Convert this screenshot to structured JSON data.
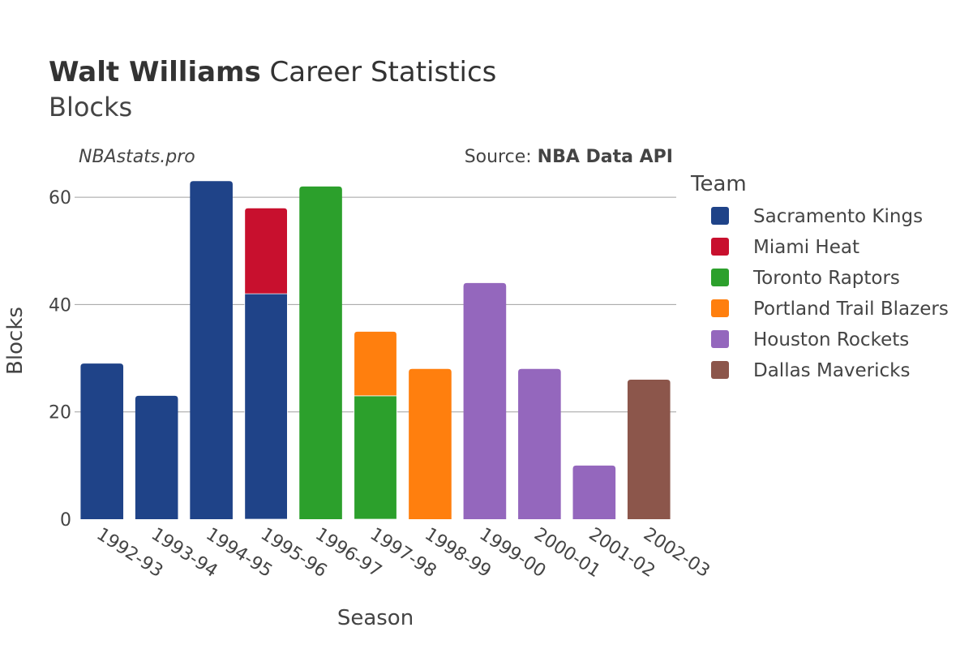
{
  "header": {
    "title_bold": "Walt Williams",
    "title_rest": " Career Statistics",
    "subtitle": "Blocks"
  },
  "credits": {
    "site": "NBAstats.pro",
    "source_prefix": "Source: ",
    "source_name": "NBA Data API"
  },
  "chart_data": {
    "type": "bar",
    "stacked": true,
    "xlabel": "Season",
    "ylabel": "Blocks",
    "ylim": [
      0,
      65
    ],
    "yticks": [
      0,
      20,
      40,
      60
    ],
    "grid": true,
    "legend_title": "Team",
    "legend_position": "right",
    "categories": [
      "1992-93",
      "1993-94",
      "1994-95",
      "1995-96",
      "1996-97",
      "1997-98",
      "1998-99",
      "1999-00",
      "2000-01",
      "2001-02",
      "2002-03"
    ],
    "series": [
      {
        "name": "Sacramento Kings",
        "color": "#1f4388",
        "values": [
          29,
          23,
          63,
          42,
          0,
          0,
          0,
          0,
          0,
          0,
          0
        ]
      },
      {
        "name": "Miami Heat",
        "color": "#c8102e",
        "values": [
          0,
          0,
          0,
          16,
          0,
          0,
          0,
          0,
          0,
          0,
          0
        ]
      },
      {
        "name": "Toronto Raptors",
        "color": "#2ca02c",
        "values": [
          0,
          0,
          0,
          0,
          62,
          23,
          0,
          0,
          0,
          0,
          0
        ]
      },
      {
        "name": "Portland Trail Blazers",
        "color": "#ff7f0e",
        "values": [
          0,
          0,
          0,
          0,
          0,
          12,
          28,
          0,
          0,
          0,
          0
        ]
      },
      {
        "name": "Houston Rockets",
        "color": "#9467bd",
        "values": [
          0,
          0,
          0,
          0,
          0,
          0,
          0,
          44,
          28,
          10,
          0
        ]
      },
      {
        "name": "Dallas Mavericks",
        "color": "#8c564b",
        "values": [
          0,
          0,
          0,
          0,
          0,
          0,
          0,
          0,
          0,
          0,
          26
        ]
      }
    ]
  }
}
